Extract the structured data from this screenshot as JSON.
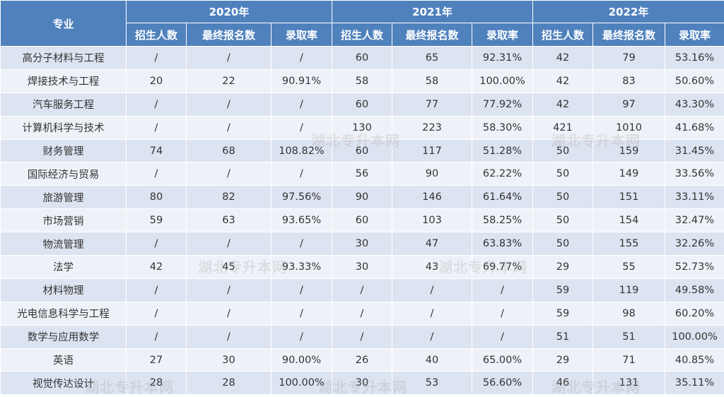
{
  "table": {
    "major_header": "专业",
    "years": [
      "2020年",
      "2021年",
      "2022年"
    ],
    "sub_headers": [
      "招生人数",
      "最终报名数",
      "录取率"
    ],
    "rows": [
      {
        "name": "高分子材料与工程",
        "cells": [
          "/",
          "/",
          "/",
          "60",
          "65",
          "92.31%",
          "42",
          "79",
          "53.16%"
        ]
      },
      {
        "name": "焊接技术与工程",
        "cells": [
          "20",
          "22",
          "90.91%",
          "58",
          "58",
          "100.00%",
          "42",
          "83",
          "50.60%"
        ]
      },
      {
        "name": "汽车服务工程",
        "cells": [
          "/",
          "/",
          "/",
          "60",
          "77",
          "77.92%",
          "42",
          "97",
          "43.30%"
        ]
      },
      {
        "name": "计算机科学与技术",
        "cells": [
          "/",
          "/",
          "/",
          "130",
          "223",
          "58.30%",
          "421",
          "1010",
          "41.68%"
        ]
      },
      {
        "name": "财务管理",
        "cells": [
          "74",
          "68",
          "108.82%",
          "60",
          "117",
          "51.28%",
          "50",
          "159",
          "31.45%"
        ]
      },
      {
        "name": "国际经济与贸易",
        "cells": [
          "/",
          "/",
          "/",
          "56",
          "90",
          "62.22%",
          "50",
          "149",
          "33.56%"
        ]
      },
      {
        "name": "旅游管理",
        "cells": [
          "80",
          "82",
          "97.56%",
          "90",
          "146",
          "61.64%",
          "50",
          "151",
          "33.11%"
        ]
      },
      {
        "name": "市场营销",
        "cells": [
          "59",
          "63",
          "93.65%",
          "60",
          "103",
          "58.25%",
          "50",
          "154",
          "32.47%"
        ]
      },
      {
        "name": "物流管理",
        "cells": [
          "/",
          "/",
          "/",
          "30",
          "47",
          "63.83%",
          "50",
          "155",
          "32.26%"
        ]
      },
      {
        "name": "法学",
        "cells": [
          "42",
          "45",
          "93.33%",
          "30",
          "43",
          "69.77%",
          "29",
          "55",
          "52.73%"
        ]
      },
      {
        "name": "材料物理",
        "cells": [
          "/",
          "/",
          "/",
          "/",
          "/",
          "/",
          "59",
          "119",
          "49.58%"
        ]
      },
      {
        "name": "光电信息科学与工程",
        "cells": [
          "/",
          "/",
          "/",
          "/",
          "/",
          "/",
          "59",
          "98",
          "60.20%"
        ]
      },
      {
        "name": "数学与应用数学",
        "cells": [
          "/",
          "/",
          "/",
          "/",
          "/",
          "/",
          "51",
          "51",
          "100.00%"
        ]
      },
      {
        "name": "英语",
        "cells": [
          "27",
          "30",
          "90.00%",
          "26",
          "40",
          "65.00%",
          "29",
          "71",
          "40.85%"
        ]
      },
      {
        "name": "视觉传达设计",
        "cells": [
          "28",
          "28",
          "100.00%",
          "30",
          "53",
          "56.60%",
          "46",
          "131",
          "35.11%"
        ]
      }
    ]
  },
  "watermark": "湖北专升本网",
  "colors": {
    "header_bg": "#4f81bd",
    "row_odd": "#dde4f1",
    "row_even": "#eef2f8"
  }
}
